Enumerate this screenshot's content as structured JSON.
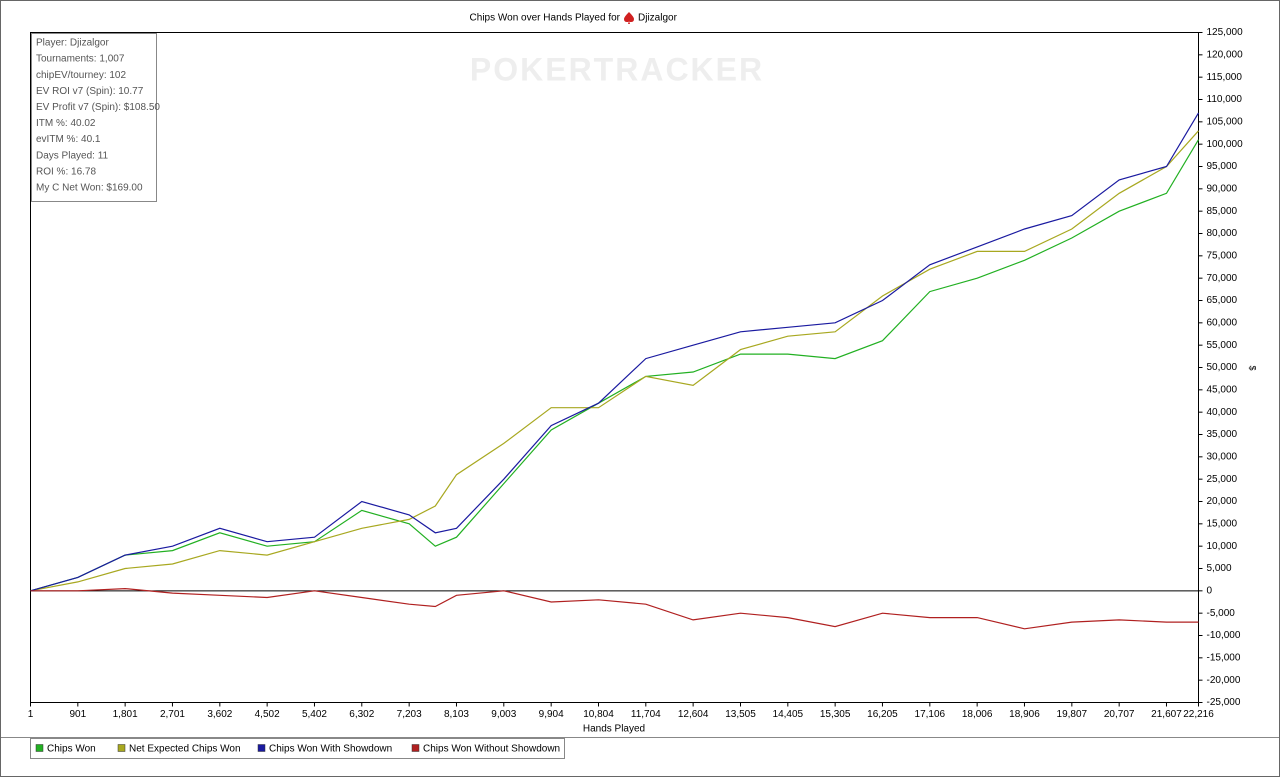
{
  "chart_data": {
    "type": "line",
    "title": "Chips Won over Hands Played for",
    "title_name": "Djizalgor",
    "watermark": "POKERTRACKER",
    "xlabel": "Hands Played",
    "ylabel": "$",
    "stats": [
      "Player: Djizalgor",
      "Tournaments: 1,007",
      "chipEV/tourney: 102",
      "EV ROI v7 (Spin): 10.77",
      "EV Profit v7 (Spin): $108.50",
      "ITM %: 40.02",
      "evITM %: 40.1",
      "Days Played: 11",
      "ROI %: 16.78",
      "My C Net Won: $169.00"
    ],
    "x": [
      1,
      901,
      1801,
      2701,
      3602,
      4502,
      5402,
      6302,
      7203,
      7700,
      8103,
      9003,
      9904,
      10804,
      11704,
      12604,
      13505,
      14405,
      15305,
      16205,
      17106,
      18006,
      18906,
      19807,
      20707,
      21607,
      22216
    ],
    "series": [
      {
        "name": "Chips Won",
        "color": "#22b022",
        "values": [
          0,
          3000,
          8000,
          9000,
          13000,
          10000,
          11000,
          18000,
          15000,
          10000,
          12000,
          24000,
          36000,
          42000,
          48000,
          49000,
          53000,
          53000,
          52000,
          56000,
          67000,
          70000,
          74000,
          79000,
          85000,
          89000,
          101000
        ]
      },
      {
        "name": "Net Expected Chips Won",
        "color": "#a8a820",
        "values": [
          0,
          2000,
          5000,
          6000,
          9000,
          8000,
          11000,
          14000,
          16000,
          19000,
          26000,
          33000,
          41000,
          41000,
          48000,
          46000,
          54000,
          57000,
          58000,
          66000,
          72000,
          76000,
          76000,
          81000,
          89000,
          95000,
          103000
        ]
      },
      {
        "name": "Chips Won With Showdown",
        "color": "#1a1aa0",
        "values": [
          0,
          3000,
          8000,
          10000,
          14000,
          11000,
          12000,
          20000,
          17000,
          13000,
          14000,
          25000,
          37000,
          42000,
          52000,
          55000,
          58000,
          59000,
          60000,
          65000,
          73000,
          77000,
          81000,
          84000,
          92000,
          95000,
          107000
        ]
      },
      {
        "name": "Chips Won Without Showdown",
        "color": "#b02020",
        "values": [
          0,
          0,
          500,
          -500,
          -1000,
          -1500,
          0,
          -1500,
          -3000,
          -3500,
          -1000,
          0,
          -2500,
          -2000,
          -3000,
          -6500,
          -5000,
          -6000,
          -8000,
          -5000,
          -6000,
          -6000,
          -8500,
          -7000,
          -6500,
          -7000,
          -7000
        ]
      }
    ],
    "xlim": [
      1,
      22216
    ],
    "xticks": [
      1,
      901,
      {
        "value": 1801,
        "label": "1,801"
      },
      {
        "value": 2701,
        "label": "2,701"
      },
      {
        "value": 3602,
        "label": "3,602"
      },
      {
        "value": 4502,
        "label": "4,502"
      },
      {
        "value": 5402,
        "label": "5,402"
      },
      {
        "value": 6302,
        "label": "6,302"
      },
      {
        "value": 7203,
        "label": "7,203"
      },
      {
        "value": 8103,
        "label": "8,103"
      },
      {
        "value": 9003,
        "label": "9,003"
      },
      {
        "value": 9904,
        "label": "9,904"
      },
      {
        "value": 10804,
        "label": "10,804"
      },
      {
        "value": 11704,
        "label": "11,704"
      },
      {
        "value": 12604,
        "label": "12,604"
      },
      {
        "value": 13505,
        "label": "13,505"
      },
      {
        "value": 14405,
        "label": "14,405"
      },
      {
        "value": 15305,
        "label": "15,305"
      },
      {
        "value": 16205,
        "label": "16,205"
      },
      {
        "value": 17106,
        "label": "17,106"
      },
      {
        "value": 18006,
        "label": "18,006"
      },
      {
        "value": 18906,
        "label": "18,906"
      },
      {
        "value": 19807,
        "label": "19,807"
      },
      {
        "value": 20707,
        "label": "20,707"
      },
      {
        "value": 21607,
        "label": "21,607"
      },
      {
        "value": 22216,
        "label": "22,216"
      }
    ],
    "ylim": [
      -25000,
      125000
    ],
    "yticks": [
      {
        "value": -25000,
        "label": "-25,000"
      },
      {
        "value": -20000,
        "label": "-20,000"
      },
      {
        "value": -15000,
        "label": "-15,000"
      },
      {
        "value": -10000,
        "label": "-10,000"
      },
      {
        "value": -5000,
        "label": "-5,000"
      },
      0,
      {
        "value": 5000,
        "label": "5,000"
      },
      {
        "value": 10000,
        "label": "10,000"
      },
      {
        "value": 15000,
        "label": "15,000"
      },
      {
        "value": 20000,
        "label": "20,000"
      },
      {
        "value": 25000,
        "label": "25,000"
      },
      {
        "value": 30000,
        "label": "30,000"
      },
      {
        "value": 35000,
        "label": "35,000"
      },
      {
        "value": 40000,
        "label": "40,000"
      },
      {
        "value": 45000,
        "label": "45,000"
      },
      {
        "value": 50000,
        "label": "50,000"
      },
      {
        "value": 55000,
        "label": "55,000"
      },
      {
        "value": 60000,
        "label": "60,000"
      },
      {
        "value": 65000,
        "label": "65,000"
      },
      {
        "value": 70000,
        "label": "70,000"
      },
      {
        "value": 75000,
        "label": "75,000"
      },
      {
        "value": 80000,
        "label": "80,000"
      },
      {
        "value": 85000,
        "label": "85,000"
      },
      {
        "value": 90000,
        "label": "90,000"
      },
      {
        "value": 95000,
        "label": "95,000"
      },
      {
        "value": 100000,
        "label": "100,000"
      },
      {
        "value": 105000,
        "label": "105,000"
      },
      {
        "value": 110000,
        "label": "110,000"
      },
      {
        "value": 115000,
        "label": "115,000"
      },
      {
        "value": 120000,
        "label": "120,000"
      },
      {
        "value": 125000,
        "label": "125,000"
      }
    ],
    "grid": false
  }
}
